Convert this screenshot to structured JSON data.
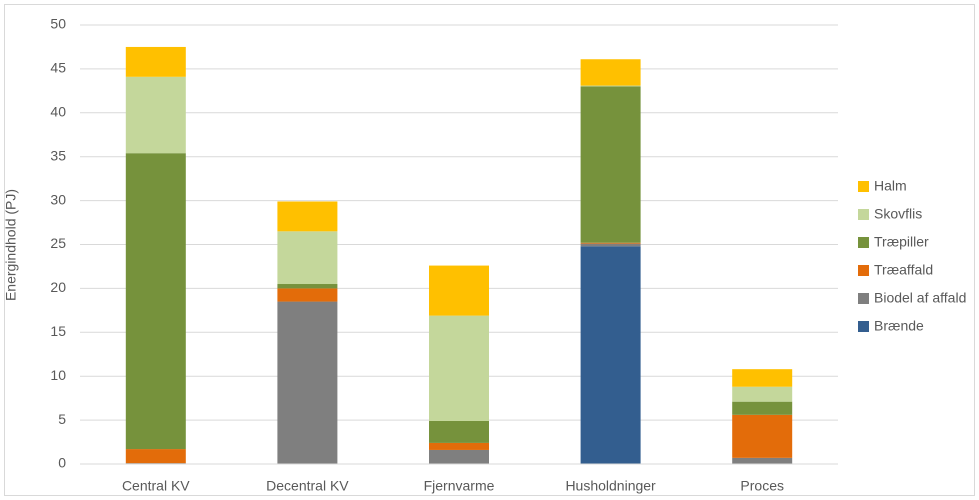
{
  "chart_data": {
    "type": "bar",
    "stacked": true,
    "title": "",
    "xlabel": "",
    "ylabel": "Energindhold (PJ)",
    "ylim": [
      0,
      50
    ],
    "yticks": [
      0,
      5,
      10,
      15,
      20,
      25,
      30,
      35,
      40,
      45,
      50
    ],
    "grid": true,
    "legend_position": "right",
    "categories": [
      "Central KV",
      "Decentral KV",
      "Fjernvarme",
      "Husholdninger",
      "Proces"
    ],
    "series": [
      {
        "name": "Brænde",
        "color": "#335E8F",
        "values": [
          0,
          0,
          0,
          24.8,
          0
        ]
      },
      {
        "name": "Biodel af affald",
        "color": "#7F7F7F",
        "values": [
          0.1,
          18.5,
          1.6,
          0.3,
          0.7
        ]
      },
      {
        "name": "Træaffald",
        "color": "#E36C0A",
        "values": [
          1.6,
          1.5,
          0.8,
          0.1,
          4.9
        ]
      },
      {
        "name": "Træpiller",
        "color": "#76923C",
        "values": [
          33.7,
          0.5,
          2.5,
          17.8,
          1.5
        ]
      },
      {
        "name": "Skovflis",
        "color": "#C4D79B",
        "values": [
          8.7,
          6.0,
          12.0,
          0.1,
          1.7
        ]
      },
      {
        "name": "Halm",
        "color": "#FFC000",
        "values": [
          3.4,
          3.4,
          5.7,
          3.0,
          2.0
        ]
      }
    ],
    "legend_order": [
      "Halm",
      "Skovflis",
      "Træpiller",
      "Træaffald",
      "Biodel af affald",
      "Brænde"
    ]
  }
}
